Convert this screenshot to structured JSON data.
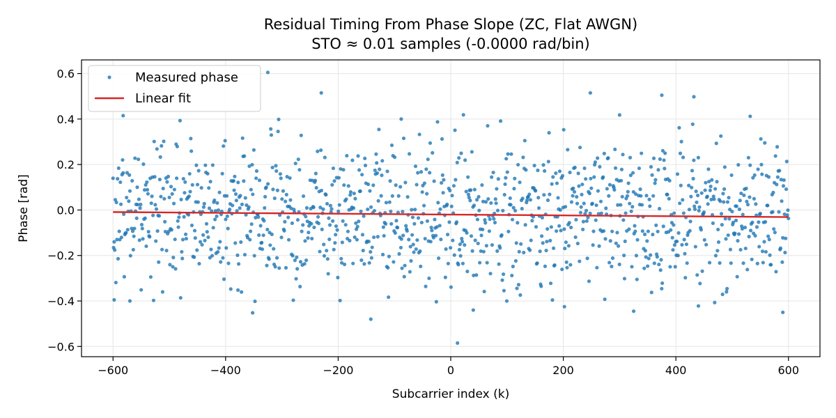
{
  "chart_data": {
    "type": "scatter",
    "title_line1": "Residual Timing From Phase Slope (ZC, Flat AWGN)",
    "title_line2": "STO ≈ 0.01 samples (-0.0000 rad/bin)",
    "xlabel": "Subcarrier index (k)",
    "ylabel": "Phase [rad]",
    "xlim": [
      -656,
      656
    ],
    "ylim": [
      -0.645,
      0.66
    ],
    "x_ticks": [
      -600,
      -400,
      -200,
      0,
      200,
      400,
      600
    ],
    "x_tick_labels": [
      "−600",
      "−400",
      "−200",
      "0",
      "200",
      "400",
      "600"
    ],
    "y_ticks": [
      -0.6,
      -0.4,
      -0.2,
      0.0,
      0.2,
      0.4,
      0.6
    ],
    "y_tick_labels": [
      "−0.6",
      "−0.4",
      "−0.2",
      "0.0",
      "0.2",
      "0.4",
      "0.6"
    ],
    "grid": true,
    "legend": "top-left",
    "series": [
      {
        "name": "Measured phase",
        "kind": "scatter",
        "color": "#1f77b4",
        "x_range": [
          -600,
          600
        ],
        "n_points": 1200,
        "noise_std": 0.16,
        "highlight_points": [
          {
            "x": -325,
            "y": 0.605
          },
          {
            "x": -230,
            "y": 0.515
          },
          {
            "x": 248,
            "y": 0.515
          },
          {
            "x": 375,
            "y": 0.505
          },
          {
            "x": 432,
            "y": 0.498
          },
          {
            "x": -582,
            "y": 0.415
          },
          {
            "x": -88,
            "y": 0.4
          },
          {
            "x": 300,
            "y": 0.418
          },
          {
            "x": 532,
            "y": 0.412
          },
          {
            "x": 12,
            "y": -0.585
          },
          {
            "x": -142,
            "y": -0.48
          },
          {
            "x": 590,
            "y": -0.45
          },
          {
            "x": -352,
            "y": -0.452
          },
          {
            "x": -598,
            "y": -0.395
          },
          {
            "x": -570,
            "y": -0.4
          },
          {
            "x": -378,
            "y": -0.352
          },
          {
            "x": 202,
            "y": -0.425
          },
          {
            "x": 440,
            "y": -0.422
          },
          {
            "x": 40,
            "y": -0.44
          },
          {
            "x": 325,
            "y": -0.445
          }
        ]
      },
      {
        "name": "Linear fit",
        "kind": "line",
        "color": "#d62728",
        "x": [
          -600,
          600
        ],
        "y": [
          -0.009,
          -0.031
        ]
      }
    ]
  }
}
